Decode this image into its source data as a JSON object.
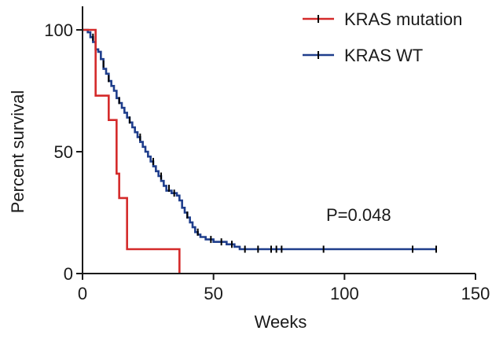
{
  "chart_data": {
    "type": "line",
    "subtype": "kaplan-meier",
    "title": "",
    "xlabel": "Weeks",
    "ylabel": "Percent survival",
    "xlim": [
      0,
      150
    ],
    "ylim": [
      0,
      100
    ],
    "xticks": [
      0,
      50,
      100,
      150
    ],
    "yticks": [
      0,
      50,
      100
    ],
    "grid": false,
    "legend_position": "top-right",
    "annotation": "P=0.048",
    "series": [
      {
        "name": "KRAS mutation",
        "color": "#d42a2a",
        "steps": [
          [
            0,
            100
          ],
          [
            5,
            100
          ],
          [
            5,
            73
          ],
          [
            10,
            73
          ],
          [
            10,
            63
          ],
          [
            13,
            63
          ],
          [
            13,
            41
          ],
          [
            14,
            41
          ],
          [
            14,
            31
          ],
          [
            17,
            31
          ],
          [
            17,
            10
          ],
          [
            37,
            10
          ],
          [
            37,
            0
          ]
        ],
        "censors": []
      },
      {
        "name": "KRAS WT",
        "color": "#1f3e8c",
        "steps": [
          [
            0,
            100
          ],
          [
            2,
            99
          ],
          [
            3,
            97
          ],
          [
            4,
            95
          ],
          [
            5,
            92
          ],
          [
            6,
            91
          ],
          [
            7,
            88
          ],
          [
            8,
            84
          ],
          [
            9,
            82
          ],
          [
            10,
            79
          ],
          [
            11,
            77
          ],
          [
            12,
            75
          ],
          [
            13,
            72
          ],
          [
            14,
            70
          ],
          [
            15,
            68
          ],
          [
            16,
            66
          ],
          [
            17,
            64
          ],
          [
            18,
            62
          ],
          [
            19,
            60
          ],
          [
            20,
            58
          ],
          [
            21,
            56
          ],
          [
            22,
            54
          ],
          [
            23,
            52
          ],
          [
            24,
            50
          ],
          [
            25,
            48
          ],
          [
            26,
            46
          ],
          [
            27,
            44
          ],
          [
            28,
            42
          ],
          [
            29,
            40
          ],
          [
            30,
            38
          ],
          [
            31,
            36
          ],
          [
            32,
            34
          ],
          [
            34,
            33
          ],
          [
            36,
            32
          ],
          [
            37,
            30
          ],
          [
            38,
            27
          ],
          [
            39,
            25
          ],
          [
            40,
            23
          ],
          [
            41,
            21
          ],
          [
            42,
            19
          ],
          [
            43,
            17
          ],
          [
            44,
            16
          ],
          [
            45,
            15
          ],
          [
            47,
            14
          ],
          [
            50,
            13
          ],
          [
            55,
            12
          ],
          [
            58,
            11
          ],
          [
            60,
            10
          ],
          [
            135,
            10
          ]
        ],
        "censors": [
          [
            4,
            97
          ],
          [
            8,
            86
          ],
          [
            10,
            80
          ],
          [
            14,
            71
          ],
          [
            18,
            63
          ],
          [
            22,
            56
          ],
          [
            27,
            46
          ],
          [
            30,
            40
          ],
          [
            33,
            35
          ],
          [
            35,
            33
          ],
          [
            40,
            24
          ],
          [
            44,
            17
          ],
          [
            49,
            14
          ],
          [
            53,
            13
          ],
          [
            57,
            12
          ],
          [
            62,
            10
          ],
          [
            67,
            10
          ],
          [
            72,
            10
          ],
          [
            74,
            10
          ],
          [
            76,
            10
          ],
          [
            92,
            10
          ],
          [
            126,
            10
          ],
          [
            135,
            10
          ]
        ]
      }
    ]
  }
}
